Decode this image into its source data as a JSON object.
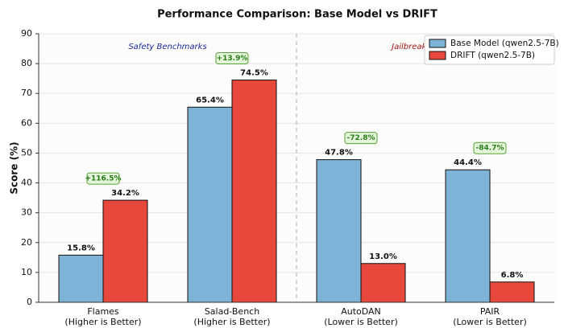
{
  "chart_data": {
    "type": "bar",
    "title": "Performance Comparison: Base Model vs DRIFT",
    "y_label": "Score (%)",
    "categories": [
      [
        "Flames",
        "(Higher is Better)"
      ],
      [
        "Salad-Bench",
        "(Higher is Better)"
      ],
      [
        "AutoDAN",
        "(Lower is Better)"
      ],
      [
        "PAIR",
        "(Lower is Better)"
      ]
    ],
    "series": [
      {
        "name": "Base Model (qwen2.5-7B)",
        "color": "#7eb3d8",
        "values": [
          15.8,
          65.4,
          47.8,
          44.4
        ],
        "value_labels": [
          "15.8%",
          "65.4%",
          "47.8%",
          "44.4%"
        ]
      },
      {
        "name": "DRIFT (qwen2.5-7B)",
        "color": "#e8483b",
        "values": [
          34.2,
          74.5,
          13.0,
          6.8
        ],
        "value_labels": [
          "34.2%",
          "74.5%",
          "13.0%",
          "6.8%"
        ]
      }
    ],
    "annotations": [
      "+116.5%",
      "+13.9%",
      "-72.8%",
      "-84.7%"
    ],
    "sections": [
      "Safety Benchmarks",
      "Jailbreak Attacks"
    ],
    "ylim": [
      0,
      90
    ],
    "yticks": [
      0,
      10,
      20,
      30,
      40,
      50,
      60,
      70,
      80,
      90
    ],
    "grid": true,
    "legend": "upper right"
  }
}
